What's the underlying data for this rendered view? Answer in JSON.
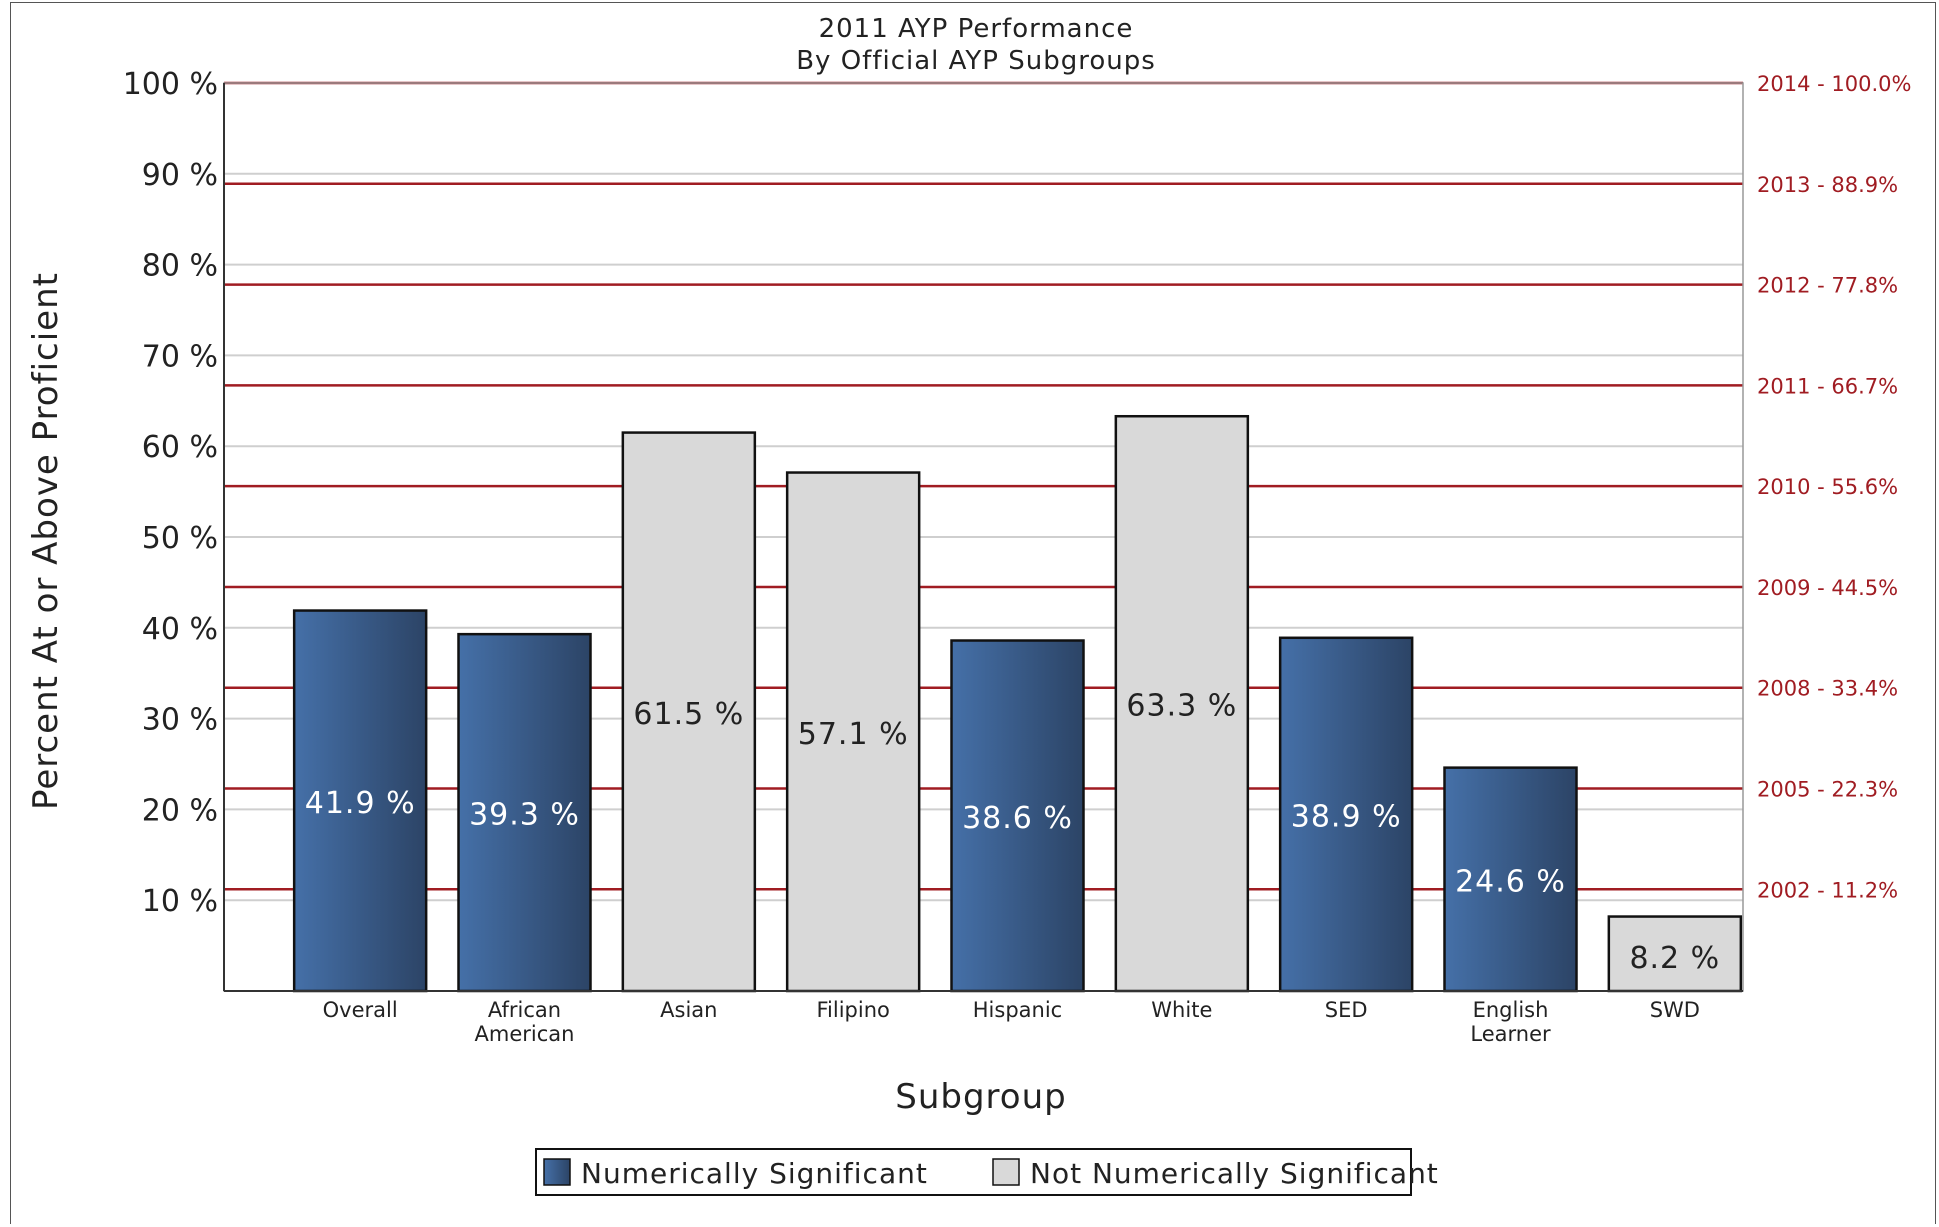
{
  "chart_data": {
    "type": "bar",
    "title": "2011 AYP Performance",
    "subtitle": "By Official AYP Subgroups",
    "xlabel": "Subgroup",
    "ylabel": "Percent At or Above Proficient",
    "ylim": [
      0,
      100
    ],
    "yticks": [
      10,
      20,
      30,
      40,
      50,
      60,
      70,
      80,
      90,
      100
    ],
    "ytick_suffix": " %",
    "grid": true,
    "categories": [
      [
        "Overall"
      ],
      [
        "African",
        "American"
      ],
      [
        "Asian"
      ],
      [
        "Filipino"
      ],
      [
        "Hispanic"
      ],
      [
        "White"
      ],
      [
        "SED"
      ],
      [
        "English",
        "Learner"
      ],
      [
        "SWD"
      ]
    ],
    "values": [
      41.9,
      39.3,
      61.5,
      57.1,
      38.6,
      63.3,
      38.9,
      24.6,
      8.2
    ],
    "value_labels": [
      "41.9 %",
      "39.3 %",
      "61.5 %",
      "57.1 %",
      "38.6 %",
      "63.3 %",
      "38.9 %",
      "24.6 %",
      "8.2 %"
    ],
    "significant": [
      true,
      true,
      false,
      false,
      true,
      false,
      true,
      true,
      false
    ],
    "goal_lines": [
      {
        "value": 100.0,
        "label": "2014 - 100.0%"
      },
      {
        "value": 88.9,
        "label": "2013 - 88.9%"
      },
      {
        "value": 77.8,
        "label": "2012 - 77.8%"
      },
      {
        "value": 66.7,
        "label": "2011 - 66.7%"
      },
      {
        "value": 55.6,
        "label": "2010 - 55.6%"
      },
      {
        "value": 44.5,
        "label": "2009 - 44.5%"
      },
      {
        "value": 33.4,
        "label": "2008 - 33.4%"
      },
      {
        "value": 22.3,
        "label": "2005 - 22.3%"
      },
      {
        "value": 11.2,
        "label": "2002 - 11.2%"
      }
    ],
    "legend": [
      {
        "label": "Numerically Significant",
        "key": "significant"
      },
      {
        "label": "Not Numerically Significant",
        "key": "not_significant"
      }
    ],
    "legend_position": "bottom",
    "colors": {
      "significant_dark": "#2c4466",
      "significant_light": "#4570a8",
      "not_significant": "#d9d9d9",
      "goal_line": "#a01c22",
      "grid": "#cfcfcf"
    }
  }
}
